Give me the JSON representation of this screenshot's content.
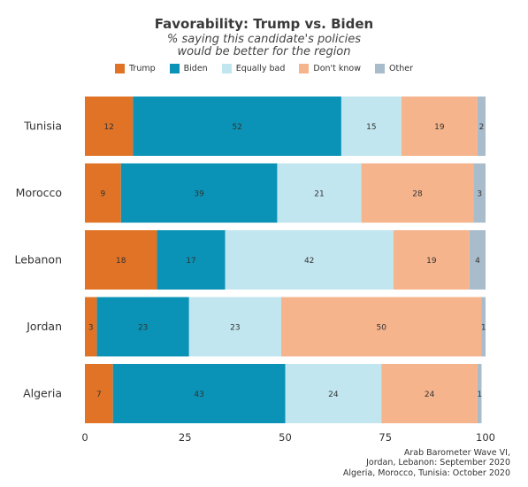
{
  "chart_data": {
    "type": "bar",
    "orientation": "horizontal",
    "stacked": true,
    "title": "Favorability: Trump vs. Biden",
    "subtitle_lines": [
      "% saying this candidate's policies",
      "would be better for the region"
    ],
    "categories": [
      "Tunisia",
      "Morocco",
      "Lebanon",
      "Jordan",
      "Algeria"
    ],
    "series": [
      {
        "name": "Trump",
        "color": "#e07326",
        "values": [
          12,
          9,
          18,
          3,
          7
        ]
      },
      {
        "name": "Biden",
        "color": "#0a93b6",
        "values": [
          52,
          39,
          17,
          23,
          43
        ]
      },
      {
        "name": "Equally bad",
        "color": "#c2e6ef",
        "values": [
          15,
          21,
          42,
          23,
          24
        ]
      },
      {
        "name": "Don't know",
        "color": "#f5b48c",
        "values": [
          19,
          28,
          19,
          50,
          24
        ]
      },
      {
        "name": "Other",
        "color": "#a9bccb",
        "values": [
          2,
          3,
          4,
          1,
          1
        ]
      }
    ],
    "xlim": [
      0,
      100
    ],
    "xticks": [
      0,
      25,
      50,
      75,
      100
    ],
    "legend_position": "top-center",
    "grid": false
  },
  "source_lines": [
    "Arab Barometer Wave VI,",
    "Jordan, Lebanon: September 2020",
    "Algeria, Morocco, Tunisia: October 2020"
  ]
}
